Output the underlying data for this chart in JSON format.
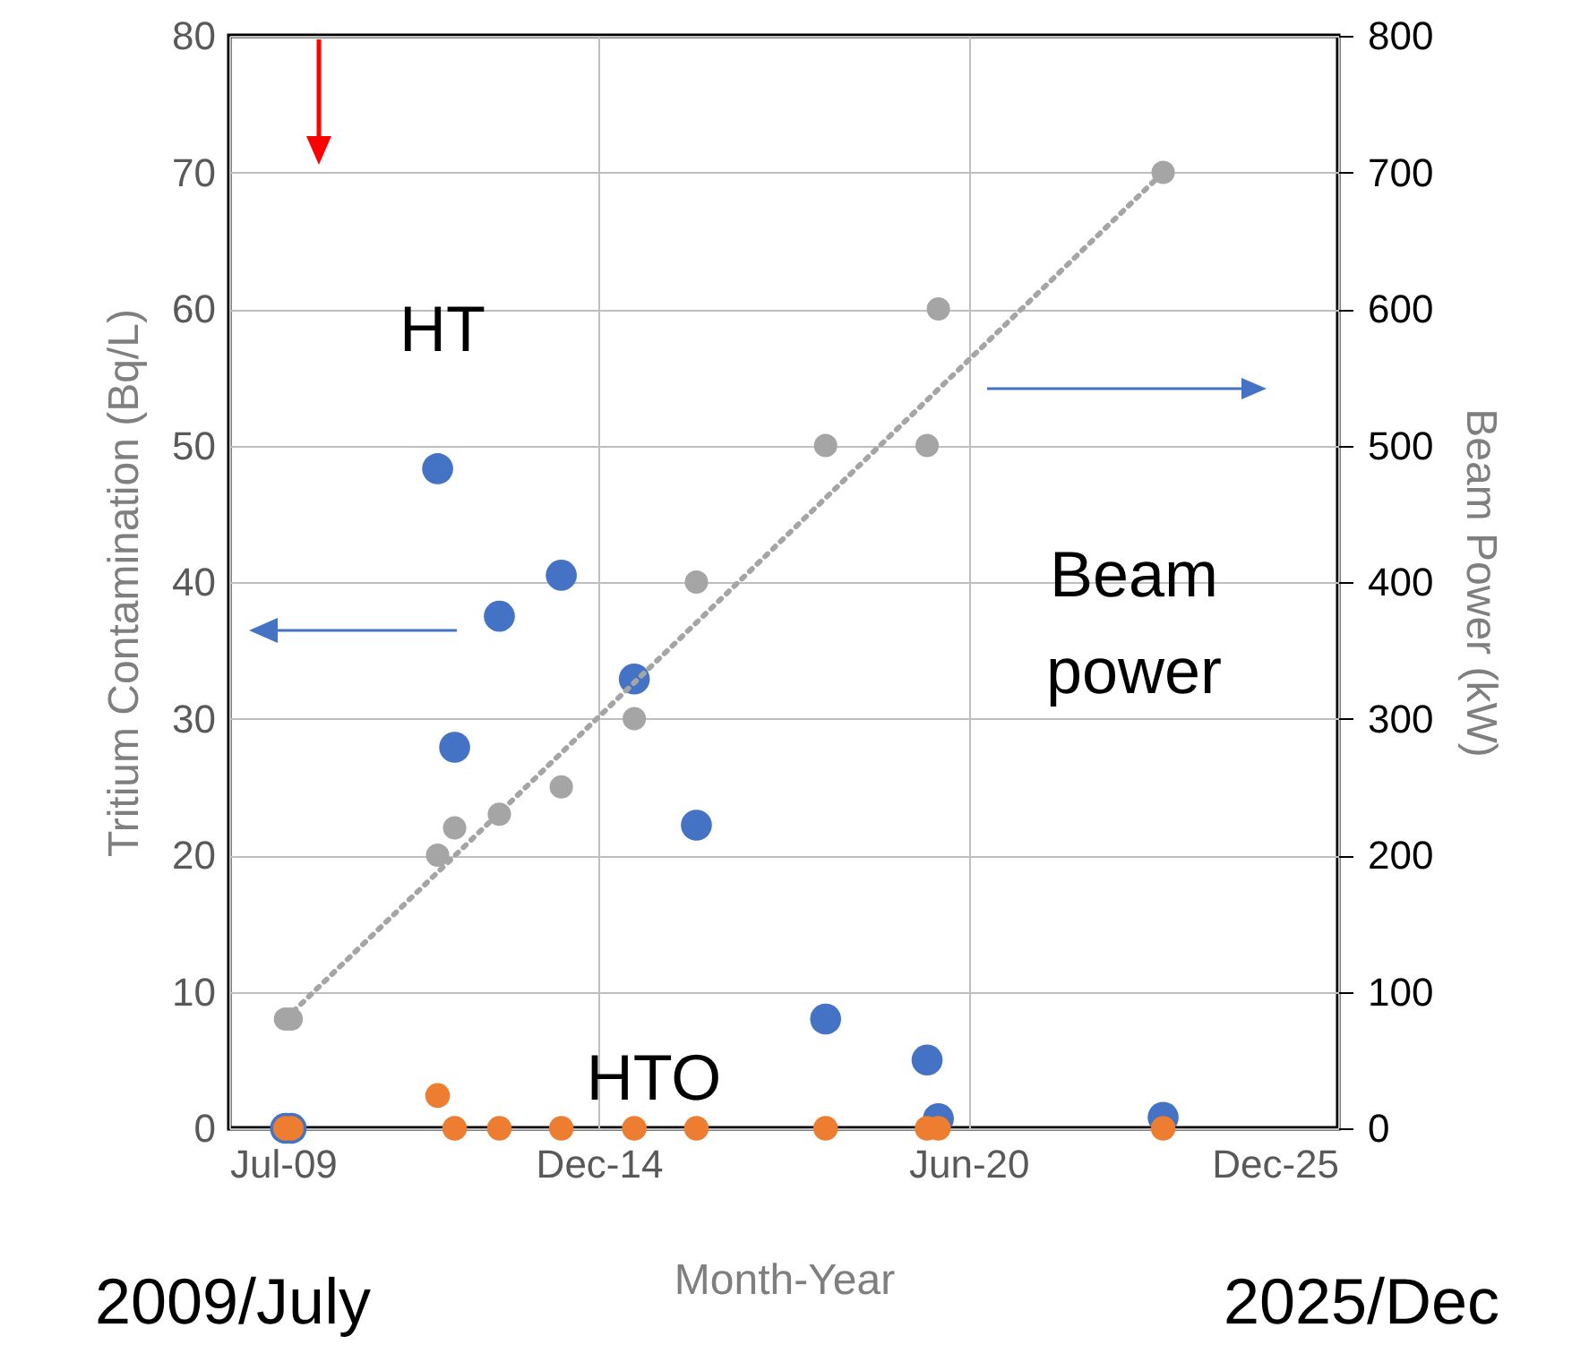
{
  "chart_data": {
    "type": "scatter",
    "xlabel": "Month-Year",
    "ylabel": "Tritium Contamination (Bq/L)",
    "y2label": "Beam Power (kW)",
    "x": [
      "2010-05",
      "2010-06",
      "2012-08",
      "2012-11",
      "2013-07",
      "2014-06",
      "2015-07",
      "2016-06",
      "2018-05",
      "2019-11",
      "2020-01",
      "2023-05"
    ],
    "series": [
      {
        "name": "HT",
        "color": "#4472c4",
        "values": [
          0,
          0,
          48.3,
          27.9,
          37.5,
          40.5,
          32.9,
          22.2,
          8.0,
          5.0,
          0.7,
          0.8
        ]
      },
      {
        "name": "HTO",
        "color": "#ed7d31",
        "values": [
          0,
          0,
          2.4,
          0,
          0,
          0,
          0,
          0,
          0,
          0,
          0,
          0
        ]
      },
      {
        "name": "Beam power",
        "color": "#a5a5a5",
        "axis": "y2",
        "values": [
          80,
          80,
          200,
          220,
          230,
          250,
          300,
          400,
          500,
          500,
          600,
          700
        ]
      },
      {
        "type": "line",
        "color": "#a5a5a5",
        "axis": "y2",
        "line_style": "dotted",
        "marker": "none",
        "x": [
          "2010-05",
          "2023-05"
        ],
        "values": [
          80,
          700
        ]
      }
    ],
    "xlim": [
      "2009-07-01",
      "2025-12-03"
    ],
    "xticks": [
      {
        "value": "2009-07-01",
        "label": "Jul-09"
      },
      {
        "value": "2014-12-21",
        "label": "Dec-14"
      },
      {
        "value": "2020-06-12",
        "label": "Jun-20"
      },
      {
        "value": "2025-12-03",
        "label": "Dec-25"
      }
    ],
    "ylim": [
      0,
      80
    ],
    "yticks": [
      0,
      10,
      20,
      30,
      40,
      50,
      60,
      70,
      80
    ],
    "y2lim": [
      0,
      800
    ],
    "y2ticks": [
      0,
      100,
      200,
      300,
      400,
      500,
      600,
      700,
      800
    ],
    "grid": true,
    "marker": "circle",
    "annotations": [
      "2009/July",
      "2025/Dec"
    ]
  }
}
